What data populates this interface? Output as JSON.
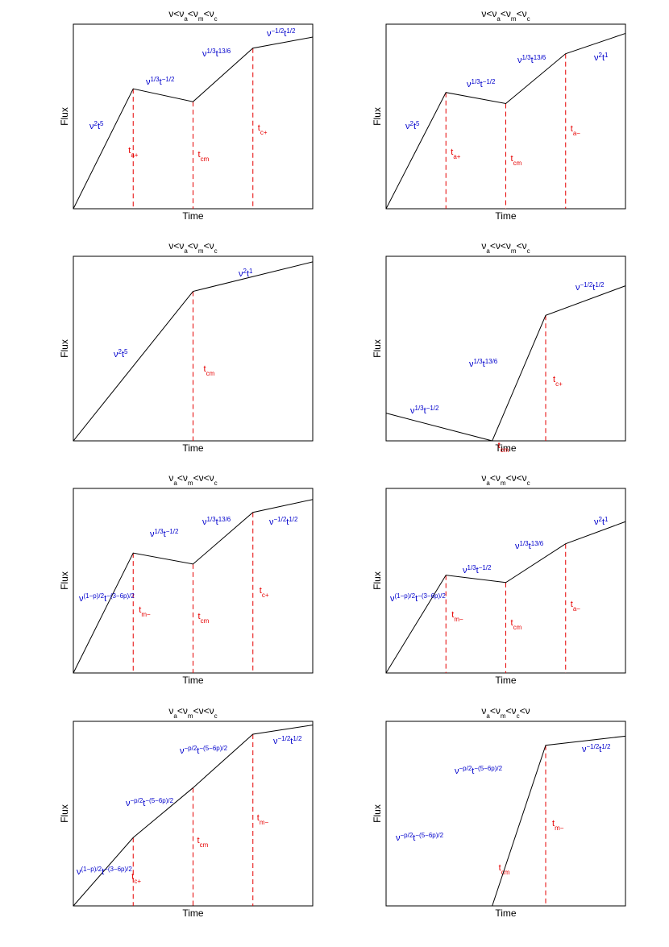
{
  "chart_data": [
    {
      "type": "line",
      "title": {
        "parts": [
          [
            "ν<ν",
            false
          ],
          [
            "a",
            "sub"
          ],
          [
            "<ν",
            false
          ],
          [
            "m",
            "sub"
          ],
          [
            "<ν",
            false
          ],
          [
            "c",
            "sub"
          ]
        ]
      },
      "xlabel": "Time",
      "ylabel": "Flux",
      "x": [
        0,
        1,
        2,
        3,
        4
      ],
      "y": [
        0.0,
        0.65,
        0.58,
        0.87,
        0.93
      ],
      "marker_x": [
        1,
        2,
        3
      ],
      "markers": [
        {
          "label": [
            [
              "t",
              false
            ],
            [
              "a+",
              "sub"
            ]
          ]
        },
        {
          "label": [
            [
              "t",
              false
            ],
            [
              "cm",
              "sub"
            ]
          ]
        },
        {
          "label": [
            [
              "t",
              false
            ],
            [
              "c+",
              "sub"
            ]
          ]
        }
      ],
      "segments": [
        {
          "label": [
            [
              "ν",
              false
            ],
            [
              "2",
              "sup"
            ],
            [
              "t",
              false
            ],
            [
              "5",
              "sup"
            ]
          ]
        },
        {
          "label": [
            [
              "ν",
              false
            ],
            [
              "1/3",
              "sup"
            ],
            [
              "t",
              false
            ],
            [
              "−1/2",
              "sup"
            ]
          ]
        },
        {
          "label": [
            [
              "ν",
              false
            ],
            [
              "1/3",
              "sup"
            ],
            [
              "t",
              false
            ],
            [
              "13/6",
              "sup"
            ]
          ]
        },
        {
          "label": [
            [
              "ν",
              false
            ],
            [
              "−1/2",
              "sup"
            ],
            [
              "t",
              false
            ],
            [
              "1/2",
              "sup"
            ]
          ]
        }
      ]
    },
    {
      "type": "line",
      "title": {
        "parts": [
          [
            "ν<ν",
            false
          ],
          [
            "a",
            "sub"
          ],
          [
            "<ν",
            false
          ],
          [
            "m",
            "sub"
          ],
          [
            "<ν",
            false
          ],
          [
            "c",
            "sub"
          ]
        ]
      },
      "xlabel": "Time",
      "ylabel": "Flux",
      "x": [
        0,
        1,
        2,
        3,
        4
      ],
      "y": [
        0.0,
        0.63,
        0.57,
        0.84,
        0.95
      ],
      "marker_x": [
        1,
        2,
        3
      ],
      "markers": [
        {
          "label": [
            [
              "t",
              false
            ],
            [
              "a+",
              "sub"
            ]
          ]
        },
        {
          "label": [
            [
              "t",
              false
            ],
            [
              "cm",
              "sub"
            ]
          ]
        },
        {
          "label": [
            [
              "t",
              false
            ],
            [
              "a−",
              "sub"
            ]
          ]
        }
      ],
      "segments": [
        {
          "label": [
            [
              "ν",
              false
            ],
            [
              "2",
              "sup"
            ],
            [
              "t",
              false
            ],
            [
              "5",
              "sup"
            ]
          ]
        },
        {
          "label": [
            [
              "ν",
              false
            ],
            [
              "1/3",
              "sup"
            ],
            [
              "t",
              false
            ],
            [
              "−1/2",
              "sup"
            ]
          ]
        },
        {
          "label": [
            [
              "ν",
              false
            ],
            [
              "1/3",
              "sup"
            ],
            [
              "t",
              false
            ],
            [
              "13/6",
              "sup"
            ]
          ]
        },
        {
          "label": [
            [
              "ν",
              false
            ],
            [
              "2",
              "sup"
            ],
            [
              "t",
              false
            ],
            [
              "1",
              "sup"
            ]
          ]
        }
      ]
    },
    {
      "type": "line",
      "title": {
        "parts": [
          [
            "ν<ν",
            false
          ],
          [
            "a",
            "sub"
          ],
          [
            "<ν",
            false
          ],
          [
            "m",
            "sub"
          ],
          [
            "<ν",
            false
          ],
          [
            "c",
            "sub"
          ]
        ]
      },
      "xlabel": "Time",
      "ylabel": "Flux",
      "x": [
        0,
        2,
        4
      ],
      "y": [
        0.0,
        0.81,
        0.97
      ],
      "marker_x": [
        2
      ],
      "markers": [
        {
          "label": [
            [
              "t",
              false
            ],
            [
              "cm",
              "sub"
            ]
          ]
        }
      ],
      "segments": [
        {
          "label": [
            [
              "ν",
              false
            ],
            [
              "2",
              "sup"
            ],
            [
              "t",
              false
            ],
            [
              "5",
              "sup"
            ]
          ]
        },
        {
          "label": [
            [
              "ν",
              false
            ],
            [
              "2",
              "sup"
            ],
            [
              "t",
              false
            ],
            [
              "1",
              "sup"
            ]
          ]
        }
      ]
    },
    {
      "type": "line",
      "title": {
        "parts": [
          [
            "ν",
            false
          ],
          [
            "a",
            "sub"
          ],
          [
            "<ν<ν",
            false
          ],
          [
            "m",
            "sub"
          ],
          [
            "<ν",
            false
          ],
          [
            "c",
            "sub"
          ]
        ]
      },
      "xlabel": "Time",
      "ylabel": "Flux",
      "x": [
        0,
        2.66,
        4,
        6
      ],
      "y": [
        0.15,
        0.0,
        0.68,
        0.84
      ],
      "marker_x": [
        2.66,
        4
      ],
      "markers": [
        {
          "label": [
            [
              "t",
              false
            ],
            [
              "cm",
              "sub"
            ]
          ]
        },
        {
          "label": [
            [
              "t",
              false
            ],
            [
              "c+",
              "sub"
            ]
          ]
        }
      ],
      "segments": [
        {
          "label": [
            [
              "ν",
              false
            ],
            [
              "1/3",
              "sup"
            ],
            [
              "t",
              false
            ],
            [
              "−1/2",
              "sup"
            ]
          ]
        },
        {
          "label": [
            [
              "ν",
              false
            ],
            [
              "1/3",
              "sup"
            ],
            [
              "t",
              false
            ],
            [
              "13/6",
              "sup"
            ]
          ]
        },
        {
          "label": [
            [
              "ν",
              false
            ],
            [
              "−1/2",
              "sup"
            ],
            [
              "t",
              false
            ],
            [
              "1/2",
              "sup"
            ]
          ]
        }
      ]
    },
    {
      "type": "line",
      "title": {
        "parts": [
          [
            "ν",
            false
          ],
          [
            "a",
            "sub"
          ],
          [
            "<ν",
            false
          ],
          [
            "m",
            "sub"
          ],
          [
            "<ν<ν",
            false
          ],
          [
            "c",
            "sub"
          ]
        ]
      },
      "xlabel": "Time",
      "ylabel": "Flux",
      "x": [
        0,
        1,
        2,
        3,
        4
      ],
      "y": [
        0.0,
        0.65,
        0.59,
        0.87,
        0.94
      ],
      "marker_x": [
        1,
        2,
        3
      ],
      "markers": [
        {
          "label": [
            [
              "t",
              false
            ],
            [
              "m−",
              "sub"
            ]
          ]
        },
        {
          "label": [
            [
              "t",
              false
            ],
            [
              "cm",
              "sub"
            ]
          ]
        },
        {
          "label": [
            [
              "t",
              false
            ],
            [
              "c+",
              "sub"
            ]
          ]
        }
      ],
      "segments": [
        {
          "label": [
            [
              "ν",
              false
            ],
            [
              "(1−p)/2",
              "sup"
            ],
            [
              "t",
              false
            ],
            [
              "−(3−6p)/2",
              "sup"
            ]
          ]
        },
        {
          "label": [
            [
              "ν",
              false
            ],
            [
              "1/3",
              "sup"
            ],
            [
              "t",
              false
            ],
            [
              "−1/2",
              "sup"
            ]
          ]
        },
        {
          "label": [
            [
              "ν",
              false
            ],
            [
              "1/3",
              "sup"
            ],
            [
              "t",
              false
            ],
            [
              "13/6",
              "sup"
            ]
          ]
        },
        {
          "label": [
            [
              "ν",
              false
            ],
            [
              "−1/2",
              "sup"
            ],
            [
              "t",
              false
            ],
            [
              "1/2",
              "sup"
            ]
          ]
        }
      ]
    },
    {
      "type": "line",
      "title": {
        "parts": [
          [
            "ν",
            false
          ],
          [
            "a",
            "sub"
          ],
          [
            "<ν",
            false
          ],
          [
            "m",
            "sub"
          ],
          [
            "<ν<ν",
            false
          ],
          [
            "c",
            "sub"
          ]
        ]
      },
      "xlabel": "Time",
      "ylabel": "Flux",
      "x": [
        0,
        1,
        2,
        3,
        4
      ],
      "y": [
        0.0,
        0.53,
        0.49,
        0.7,
        0.82
      ],
      "marker_x": [
        1,
        2,
        3
      ],
      "markers": [
        {
          "label": [
            [
              "t",
              false
            ],
            [
              "m−",
              "sub"
            ]
          ]
        },
        {
          "label": [
            [
              "t",
              false
            ],
            [
              "cm",
              "sub"
            ]
          ]
        },
        {
          "label": [
            [
              "t",
              false
            ],
            [
              "a−",
              "sub"
            ]
          ]
        }
      ],
      "segments": [
        {
          "label": [
            [
              "ν",
              false
            ],
            [
              "(1−p)/2",
              "sup"
            ],
            [
              "t",
              false
            ],
            [
              "−(3−6p)/2",
              "sup"
            ]
          ]
        },
        {
          "label": [
            [
              "ν",
              false
            ],
            [
              "1/3",
              "sup"
            ],
            [
              "t",
              false
            ],
            [
              "−1/2",
              "sup"
            ]
          ]
        },
        {
          "label": [
            [
              "ν",
              false
            ],
            [
              "1/3",
              "sup"
            ],
            [
              "t",
              false
            ],
            [
              "13/6",
              "sup"
            ]
          ]
        },
        {
          "label": [
            [
              "ν",
              false
            ],
            [
              "2",
              "sup"
            ],
            [
              "t",
              false
            ],
            [
              "1",
              "sup"
            ]
          ]
        }
      ]
    },
    {
      "type": "line",
      "title": {
        "parts": [
          [
            "ν",
            false
          ],
          [
            "a",
            "sub"
          ],
          [
            "<ν",
            false
          ],
          [
            "m",
            "sub"
          ],
          [
            "<ν<ν",
            false
          ],
          [
            "c",
            "sub"
          ]
        ]
      },
      "xlabel": "Time",
      "ylabel": "Flux",
      "x": [
        0,
        1,
        2,
        3,
        4
      ],
      "y": [
        0.0,
        0.37,
        0.64,
        0.93,
        0.98
      ],
      "marker_x": [
        1,
        2,
        3
      ],
      "markers": [
        {
          "label": [
            [
              "t",
              false
            ],
            [
              "c+",
              "sub"
            ]
          ]
        },
        {
          "label": [
            [
              "t",
              false
            ],
            [
              "cm",
              "sub"
            ]
          ]
        },
        {
          "label": [
            [
              "t",
              false
            ],
            [
              "m−",
              "sub"
            ]
          ]
        }
      ],
      "segments": [
        {
          "label": [
            [
              "ν",
              false
            ],
            [
              "(1−p)/2",
              "sup"
            ],
            [
              "t",
              false
            ],
            [
              "−(3−6p)/2",
              "sup"
            ]
          ]
        },
        {
          "label": [
            [
              "ν",
              false
            ],
            [
              "−p/2",
              "sup"
            ],
            [
              "t",
              false
            ],
            [
              "−(5−6p)/2",
              "sup"
            ]
          ]
        },
        {
          "label": [
            [
              "ν",
              false
            ],
            [
              "−p/2",
              "sup"
            ],
            [
              "t",
              false
            ],
            [
              "−(5−6p)/2",
              "sup"
            ]
          ]
        },
        {
          "label": [
            [
              "ν",
              false
            ],
            [
              "−1/2",
              "sup"
            ],
            [
              "t",
              false
            ],
            [
              "1/2",
              "sup"
            ]
          ]
        }
      ]
    },
    {
      "type": "line",
      "title": {
        "parts": [
          [
            "ν",
            false
          ],
          [
            "a",
            "sub"
          ],
          [
            "<ν",
            false
          ],
          [
            "m",
            "sub"
          ],
          [
            "<ν",
            false
          ],
          [
            "c",
            "sub"
          ],
          [
            "<ν",
            false
          ]
        ]
      },
      "xlabel": "Time",
      "ylabel": "Flux",
      "x": [
        0,
        2.66,
        4,
        6
      ],
      "y": [
        0.0,
        0.0,
        0.87,
        0.92
      ],
      "marker_x": [
        2.66,
        4
      ],
      "markers": [
        {
          "label": [
            [
              "t",
              false
            ],
            [
              "cm",
              "sub"
            ]
          ]
        },
        {
          "label": [
            [
              "t",
              false
            ],
            [
              "m−",
              "sub"
            ]
          ]
        }
      ],
      "segments": [
        {
          "label": [
            [
              "ν",
              false
            ],
            [
              "−p/2",
              "sup"
            ],
            [
              "t",
              false
            ],
            [
              "−(5−6p)/2",
              "sup"
            ]
          ]
        },
        {
          "label": [
            [
              "ν",
              false
            ],
            [
              "−p/2",
              "sup"
            ],
            [
              "t",
              false
            ],
            [
              "−(5−6p)/2",
              "sup"
            ]
          ]
        },
        {
          "label": [
            [
              "ν",
              false
            ],
            [
              "−1/2",
              "sup"
            ],
            [
              "t",
              false
            ],
            [
              "1/2",
              "sup"
            ]
          ]
        }
      ]
    }
  ],
  "colors": {
    "curve": "#000000",
    "marker": "#e60000",
    "segment_label": "#0000cc"
  }
}
